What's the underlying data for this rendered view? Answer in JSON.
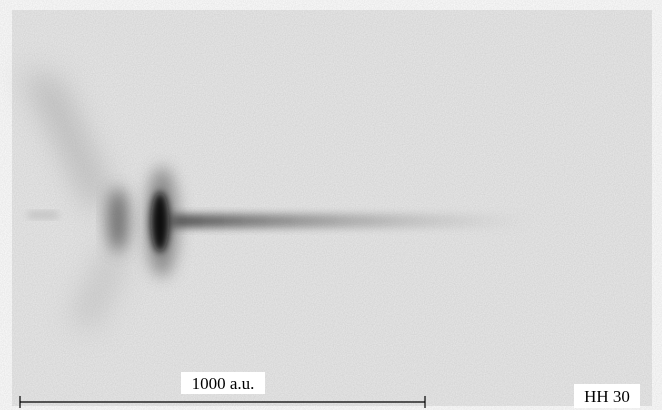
{
  "scale_bar": {
    "label": "1000 a.u."
  },
  "object_label": "HH 30"
}
